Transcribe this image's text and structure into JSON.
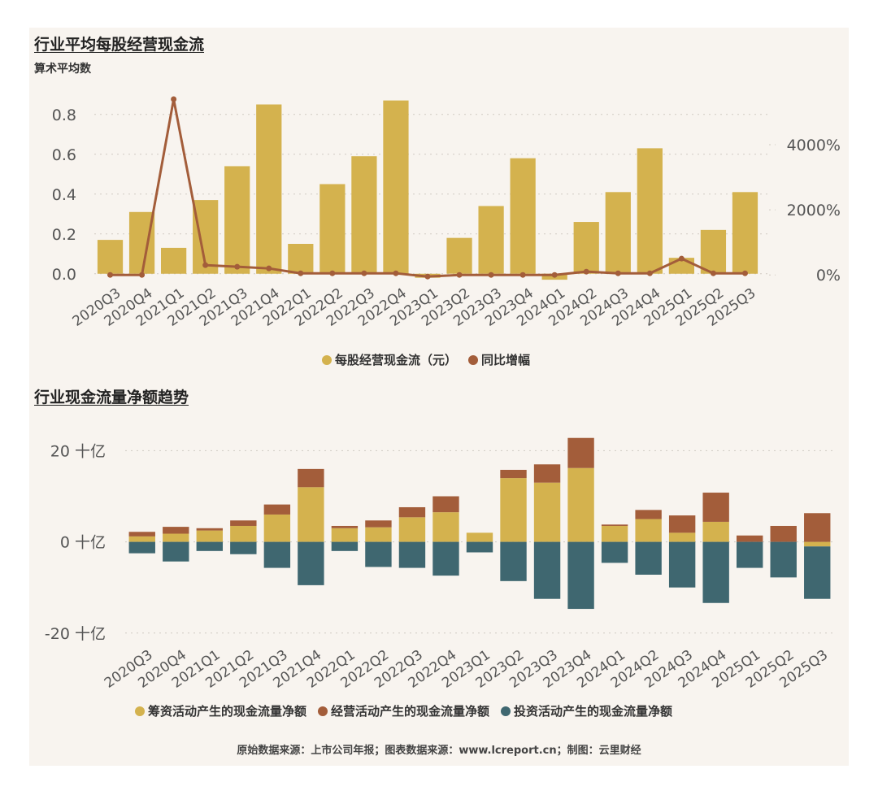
{
  "colors": {
    "gold": "#d4b24e",
    "brown": "#a35d3a",
    "teal": "#3f6770",
    "grid": "#cfcac2",
    "text": "#555555"
  },
  "chart_data": [
    {
      "type": "bar",
      "title": "行业平均每股经营现金流",
      "subtitle": "算术平均数",
      "categories": [
        "2020Q3",
        "2020Q4",
        "2021Q1",
        "2021Q2",
        "2021Q3",
        "2021Q4",
        "2022Q1",
        "2022Q2",
        "2022Q3",
        "2022Q4",
        "2023Q1",
        "2023Q2",
        "2023Q3",
        "2023Q4",
        "2024Q1",
        "2024Q2",
        "2024Q3",
        "2024Q4",
        "2025Q1",
        "2025Q2",
        "2025Q3"
      ],
      "series": [
        {
          "name": "每股经营现金流（元）",
          "kind": "bar",
          "axis": "left",
          "values": [
            0.17,
            0.31,
            0.13,
            0.37,
            0.54,
            0.85,
            0.15,
            0.45,
            0.59,
            0.87,
            -0.02,
            0.18,
            0.34,
            0.58,
            -0.03,
            0.26,
            0.41,
            0.63,
            0.08,
            0.22,
            0.41
          ]
        },
        {
          "name": "同比增幅",
          "kind": "line",
          "axis": "right",
          "values": [
            0,
            0,
            5400,
            300,
            250,
            200,
            50,
            50,
            50,
            50,
            -50,
            0,
            0,
            0,
            0,
            100,
            50,
            50,
            500,
            50,
            50
          ]
        }
      ],
      "yticks": [
        "0.0",
        "0.2",
        "0.4",
        "0.6",
        "0.8"
      ],
      "ylim": [
        -0.05,
        0.95
      ],
      "y2ticks": [
        "0%",
        "2000%",
        "4000%"
      ],
      "y2lim": [
        -270,
        5850
      ],
      "legend": [
        "每股经营现金流（元）",
        "同比增幅"
      ]
    },
    {
      "type": "bar",
      "stacked": true,
      "title": "行业现金流量净额趋势",
      "categories": [
        "2020Q3",
        "2020Q4",
        "2021Q1",
        "2021Q2",
        "2021Q3",
        "2021Q4",
        "2022Q1",
        "2022Q2",
        "2022Q3",
        "2022Q4",
        "2023Q1",
        "2023Q2",
        "2023Q3",
        "2023Q4",
        "2024Q1",
        "2024Q2",
        "2024Q3",
        "2024Q4",
        "2025Q1",
        "2025Q2",
        "2025Q3"
      ],
      "series": [
        {
          "name": "筹资活动产生的现金流量净额",
          "values": [
            1.2,
            1.8,
            2.5,
            3.5,
            6.0,
            12.0,
            3.0,
            3.2,
            5.4,
            6.5,
            2.0,
            14.0,
            13.0,
            16.2,
            3.5,
            5.0,
            2.0,
            4.4,
            0,
            0,
            -1.0
          ]
        },
        {
          "name": "经营活动产生的现金流量净额",
          "values": [
            1.0,
            1.5,
            0.5,
            1.2,
            2.2,
            4.0,
            0.5,
            1.5,
            2.2,
            3.5,
            0,
            1.8,
            4.0,
            6.6,
            0.3,
            2.0,
            3.8,
            6.4,
            1.4,
            3.5,
            6.3
          ]
        },
        {
          "name": "投资活动产生的现金流量净额",
          "values": [
            -2.5,
            -4.3,
            -2.0,
            -2.7,
            -5.7,
            -9.5,
            -2.0,
            -5.5,
            -5.7,
            -7.4,
            -2.3,
            -8.6,
            -12.5,
            -14.7,
            -4.6,
            -7.2,
            -10.0,
            -13.4,
            -5.7,
            -7.8,
            -11.5
          ]
        }
      ],
      "yticks": [
        "-20 十亿",
        "0 十亿",
        "20 十亿"
      ],
      "ytick_values": [
        -20,
        0,
        20
      ],
      "ylim": [
        -22,
        24
      ],
      "legend": [
        "筹资活动产生的现金流量净额",
        "经营活动产生的现金流量净额",
        "投资活动产生的现金流量净额"
      ]
    }
  ],
  "footer": "原始数据来源：上市公司年报；图表数据来源：www.lcreport.cn；制图：云里财经"
}
